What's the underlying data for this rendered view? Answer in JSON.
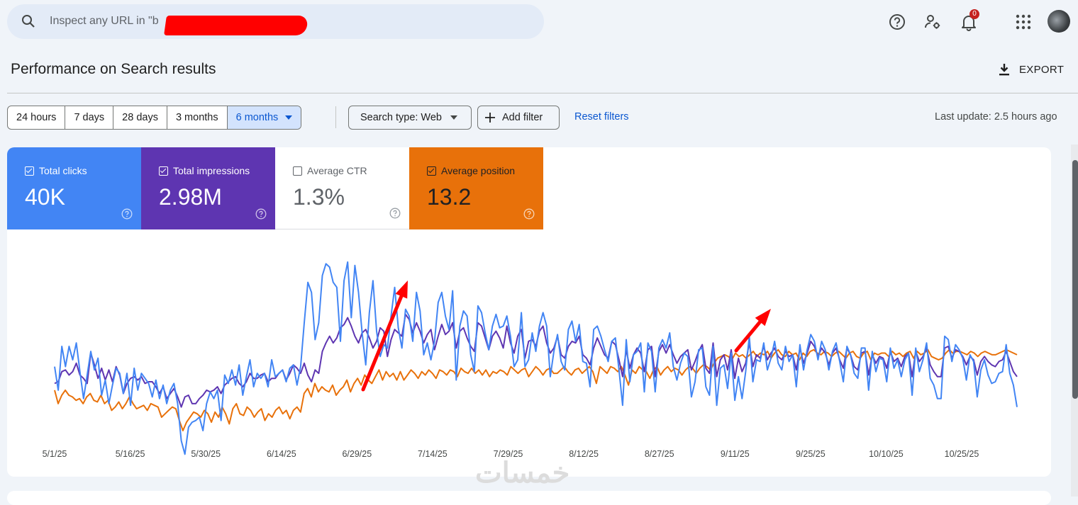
{
  "search": {
    "placeholder": "Inspect any URL in \"b"
  },
  "header": {
    "notification_count": "0"
  },
  "page": {
    "title": "Performance on Search results",
    "export_label": "EXPORT"
  },
  "filters": {
    "ranges": [
      "24 hours",
      "7 days",
      "28 days",
      "3 months",
      "6 months"
    ],
    "active_range": "6 months",
    "search_type": "Search type: Web",
    "add_filter": "Add filter",
    "reset": "Reset filters",
    "last_update": "Last update: 2.5 hours ago"
  },
  "metrics": [
    {
      "label": "Total clicks",
      "value": "40K",
      "checked": true,
      "color": "#4285f4"
    },
    {
      "label": "Total impressions",
      "value": "2.98M",
      "checked": true,
      "color": "#5e35b1"
    },
    {
      "label": "Average CTR",
      "value": "1.3%",
      "checked": false,
      "color": "#ffffff"
    },
    {
      "label": "Average position",
      "value": "13.2",
      "checked": true,
      "color": "#e8710a"
    }
  ],
  "watermark": "خمسات",
  "chart_data": {
    "type": "line",
    "x_tick_labels": [
      "5/1/25",
      "5/16/25",
      "5/30/25",
      "6/14/25",
      "6/29/25",
      "7/14/25",
      "7/29/25",
      "8/12/25",
      "8/27/25",
      "9/11/25",
      "9/25/25",
      "10/10/25",
      "10/25/25"
    ],
    "series": [
      {
        "name": "Total clicks",
        "color": "#4285f4",
        "values": [
          0.38,
          0.24,
          0.5,
          0.38,
          0.5,
          0.42,
          0.52,
          0.35,
          0.19,
          0.33,
          0.47,
          0.36,
          0.43,
          0.21,
          0.3,
          0.16,
          0.27,
          0.37,
          0.34,
          0.22,
          0.34,
          0.15,
          0.37,
          0.24,
          0.34,
          0.31,
          0.28,
          0.2,
          0.3,
          0.19,
          0.27,
          0.16,
          0.24,
          0.28,
          0.16,
          -0.06,
          -0.14,
          0.02,
          0.05,
          0.06,
          0.08,
          0.0,
          0.16,
          0.23,
          0.19,
          0.24,
          0.06,
          0.33,
          0.28,
          0.36,
          0.27,
          0.39,
          0.21,
          0.32,
          0.42,
          0.26,
          0.34,
          0.31,
          0.34,
          0.26,
          0.42,
          0.32,
          0.34,
          0.36,
          0.29,
          0.37,
          0.39,
          0.27,
          0.38,
          0.64,
          0.88,
          0.82,
          0.54,
          0.64,
          0.92,
          0.99,
          0.97,
          0.88,
          0.85,
          0.53,
          0.89,
          1.0,
          0.67,
          0.98,
          0.82,
          0.58,
          0.39,
          0.7,
          0.89,
          0.59,
          0.44,
          0.51,
          0.49,
          0.68,
          0.85,
          0.61,
          0.49,
          0.72,
          0.68,
          0.53,
          0.82,
          0.71,
          0.45,
          0.52,
          0.42,
          0.53,
          0.76,
          0.82,
          0.68,
          0.6,
          0.83,
          0.3,
          0.62,
          0.71,
          0.68,
          0.45,
          0.35,
          0.74,
          0.7,
          0.58,
          0.48,
          0.62,
          0.69,
          0.61,
          0.62,
          0.68,
          0.56,
          0.38,
          0.42,
          0.7,
          0.38,
          0.42,
          0.58,
          0.47,
          0.62,
          0.7,
          0.62,
          0.32,
          0.47,
          0.57,
          0.41,
          0.36,
          0.6,
          0.65,
          0.53,
          0.63,
          0.41,
          0.4,
          0.26,
          0.6,
          0.62,
          0.56,
          0.48,
          0.41,
          0.53,
          0.55,
          0.36,
          0.15,
          0.54,
          0.29,
          0.45,
          0.47,
          0.52,
          0.23,
          0.52,
          0.47,
          0.23,
          0.49,
          0.54,
          0.49,
          0.58,
          0.38,
          0.3,
          0.4,
          0.46,
          0.44,
          0.2,
          0.29,
          0.48,
          0.49,
          0.26,
          0.21,
          0.5,
          0.15,
          0.37,
          0.39,
          0.25,
          0.46,
          0.18,
          0.32,
          0.19,
          0.35,
          0.56,
          0.29,
          0.42,
          0.41,
          0.52,
          0.36,
          0.43,
          0.53,
          0.4,
          0.36,
          0.5,
          0.41,
          0.45,
          0.26,
          0.51,
          0.36,
          0.48,
          0.57,
          0.53,
          0.42,
          0.53,
          0.48,
          0.36,
          0.47,
          0.52,
          0.41,
          0.29,
          0.5,
          0.45,
          0.34,
          0.31,
          0.49,
          0.49,
          0.24,
          0.47,
          0.35,
          0.43,
          0.42,
          0.29,
          0.49,
          0.37,
          0.42,
          0.32,
          0.42,
          0.46,
          0.21,
          0.49,
          0.35,
          0.42,
          0.52,
          0.31,
          0.27,
          0.19,
          0.19,
          0.56,
          0.54,
          0.41,
          0.51,
          0.48,
          0.43,
          0.3,
          0.45,
          0.41,
          0.2,
          0.36,
          0.42,
          0.33,
          0.28,
          0.29,
          0.34,
          0.35,
          0.51,
          0.34,
          0.27,
          0.14
        ]
      },
      {
        "name": "Total impressions",
        "color": "#5e35b1",
        "values": [
          0.28,
          0.29,
          0.35,
          0.36,
          0.33,
          0.35,
          0.4,
          0.33,
          0.31,
          0.28,
          0.46,
          0.39,
          0.31,
          0.37,
          0.3,
          0.36,
          0.29,
          0.38,
          0.33,
          0.22,
          0.28,
          0.31,
          0.32,
          0.3,
          0.32,
          0.28,
          0.29,
          0.29,
          0.26,
          0.22,
          0.26,
          0.19,
          0.22,
          0.25,
          0.2,
          0.14,
          0.2,
          0.21,
          0.16,
          0.16,
          0.19,
          0.21,
          0.24,
          0.23,
          0.24,
          0.26,
          0.22,
          0.27,
          0.29,
          0.31,
          0.32,
          0.28,
          0.26,
          0.29,
          0.34,
          0.31,
          0.31,
          0.33,
          0.34,
          0.29,
          0.31,
          0.31,
          0.34,
          0.36,
          0.3,
          0.34,
          0.39,
          0.37,
          0.34,
          0.4,
          0.33,
          0.29,
          0.36,
          0.34,
          0.47,
          0.52,
          0.56,
          0.52,
          0.55,
          0.61,
          0.63,
          0.67,
          0.62,
          0.56,
          0.52,
          0.58,
          0.6,
          0.55,
          0.49,
          0.53,
          0.61,
          0.59,
          0.44,
          0.54,
          0.6,
          0.58,
          0.56,
          0.69,
          0.66,
          0.58,
          0.64,
          0.59,
          0.52,
          0.57,
          0.6,
          0.48,
          0.56,
          0.63,
          0.57,
          0.59,
          0.64,
          0.49,
          0.59,
          0.61,
          0.55,
          0.5,
          0.47,
          0.64,
          0.62,
          0.55,
          0.48,
          0.56,
          0.59,
          0.55,
          0.49,
          0.62,
          0.52,
          0.46,
          0.56,
          0.6,
          0.43,
          0.53,
          0.54,
          0.5,
          0.59,
          0.62,
          0.52,
          0.46,
          0.49,
          0.56,
          0.45,
          0.43,
          0.5,
          0.53,
          0.52,
          0.56,
          0.45,
          0.43,
          0.39,
          0.49,
          0.55,
          0.5,
          0.45,
          0.43,
          0.53,
          0.51,
          0.42,
          0.32,
          0.48,
          0.37,
          0.45,
          0.49,
          0.46,
          0.35,
          0.48,
          0.5,
          0.32,
          0.47,
          0.51,
          0.46,
          0.51,
          0.45,
          0.4,
          0.44,
          0.46,
          0.48,
          0.36,
          0.41,
          0.47,
          0.51,
          0.37,
          0.34,
          0.52,
          0.32,
          0.42,
          0.45,
          0.36,
          0.48,
          0.31,
          0.43,
          0.35,
          0.4,
          0.52,
          0.38,
          0.45,
          0.43,
          0.5,
          0.42,
          0.46,
          0.49,
          0.44,
          0.42,
          0.47,
          0.44,
          0.45,
          0.36,
          0.49,
          0.4,
          0.46,
          0.53,
          0.5,
          0.44,
          0.49,
          0.46,
          0.39,
          0.46,
          0.49,
          0.42,
          0.37,
          0.49,
          0.45,
          0.38,
          0.36,
          0.46,
          0.47,
          0.33,
          0.45,
          0.4,
          0.44,
          0.43,
          0.37,
          0.47,
          0.41,
          0.43,
          0.38,
          0.44,
          0.46,
          0.32,
          0.47,
          0.41,
          0.44,
          0.49,
          0.39,
          0.35,
          0.32,
          0.32,
          0.49,
          0.5,
          0.43,
          0.48,
          0.47,
          0.44,
          0.39,
          0.44,
          0.42,
          0.33,
          0.41,
          0.44,
          0.41,
          0.39,
          0.38,
          0.41,
          0.42,
          0.47,
          0.41,
          0.35,
          0.32
        ]
      },
      {
        "name": "Average position",
        "color": "#e8710a",
        "values": [
          0.24,
          0.16,
          0.21,
          0.24,
          0.21,
          0.2,
          0.18,
          0.19,
          0.16,
          0.2,
          0.22,
          0.18,
          0.17,
          0.21,
          0.16,
          0.18,
          0.12,
          0.14,
          0.17,
          0.13,
          0.16,
          0.2,
          0.16,
          0.13,
          0.14,
          0.15,
          0.12,
          0.16,
          0.15,
          0.14,
          0.08,
          0.1,
          0.12,
          0.14,
          0.13,
          0.06,
          0.0,
          0.05,
          0.08,
          0.11,
          0.1,
          0.08,
          0.12,
          0.1,
          0.05,
          0.11,
          0.08,
          0.14,
          0.1,
          0.04,
          0.13,
          0.16,
          0.1,
          0.09,
          0.14,
          0.12,
          0.08,
          0.11,
          0.13,
          0.06,
          0.1,
          0.08,
          0.12,
          0.14,
          0.1,
          0.12,
          0.07,
          0.12,
          0.14,
          0.11,
          0.22,
          0.25,
          0.2,
          0.28,
          0.23,
          0.26,
          0.24,
          0.23,
          0.27,
          0.21,
          0.24,
          0.26,
          0.3,
          0.23,
          0.28,
          0.31,
          0.27,
          0.33,
          0.3,
          0.28,
          0.32,
          0.36,
          0.3,
          0.35,
          0.32,
          0.34,
          0.3,
          0.35,
          0.3,
          0.33,
          0.36,
          0.34,
          0.31,
          0.35,
          0.33,
          0.36,
          0.34,
          0.31,
          0.36,
          0.35,
          0.33,
          0.36,
          0.35,
          0.32,
          0.37,
          0.35,
          0.34,
          0.37,
          0.34,
          0.36,
          0.33,
          0.36,
          0.32,
          0.35,
          0.34,
          0.36,
          0.35,
          0.33,
          0.38,
          0.36,
          0.34,
          0.36,
          0.37,
          0.32,
          0.35,
          0.38,
          0.36,
          0.33,
          0.36,
          0.37,
          0.34,
          0.34,
          0.36,
          0.38,
          0.35,
          0.33,
          0.36,
          0.37,
          0.34,
          0.36,
          0.38,
          0.35,
          0.28,
          0.38,
          0.36,
          0.34,
          0.38,
          0.37,
          0.35,
          0.38,
          0.33,
          0.27,
          0.36,
          0.34,
          0.38,
          0.36,
          0.35,
          0.31,
          0.36,
          0.38,
          0.33,
          0.36,
          0.38,
          0.35,
          0.37,
          0.36,
          0.33,
          0.36,
          0.38,
          0.37,
          0.34,
          0.37,
          0.39,
          0.38,
          0.36,
          0.4,
          0.43,
          0.44,
          0.45,
          0.44,
          0.42,
          0.46,
          0.44,
          0.45,
          0.43,
          0.45,
          0.47,
          0.44,
          0.46,
          0.45,
          0.47,
          0.43,
          0.46,
          0.48,
          0.45,
          0.44,
          0.47,
          0.45,
          0.46,
          0.42,
          0.46,
          0.44,
          0.47,
          0.48,
          0.46,
          0.45,
          0.47,
          0.46,
          0.44,
          0.46,
          0.47,
          0.45,
          0.43,
          0.46,
          0.47,
          0.44,
          0.43,
          0.46,
          0.47,
          0.42,
          0.46,
          0.45,
          0.46,
          0.46,
          0.44,
          0.47,
          0.45,
          0.46,
          0.44,
          0.46,
          0.47,
          0.43,
          0.47,
          0.45,
          0.46,
          0.48,
          0.44,
          0.43,
          0.42,
          0.43,
          0.46,
          0.48,
          0.46,
          0.47,
          0.47,
          0.46,
          0.45,
          0.47,
          0.46,
          0.44,
          0.46,
          0.47,
          0.46,
          0.45,
          0.45,
          0.46,
          0.47,
          0.48,
          0.47,
          0.46,
          0.45
        ]
      }
    ],
    "annotations": [
      {
        "type": "arrow",
        "color": "#ff0000"
      },
      {
        "type": "arrow",
        "color": "#ff0000"
      }
    ]
  }
}
